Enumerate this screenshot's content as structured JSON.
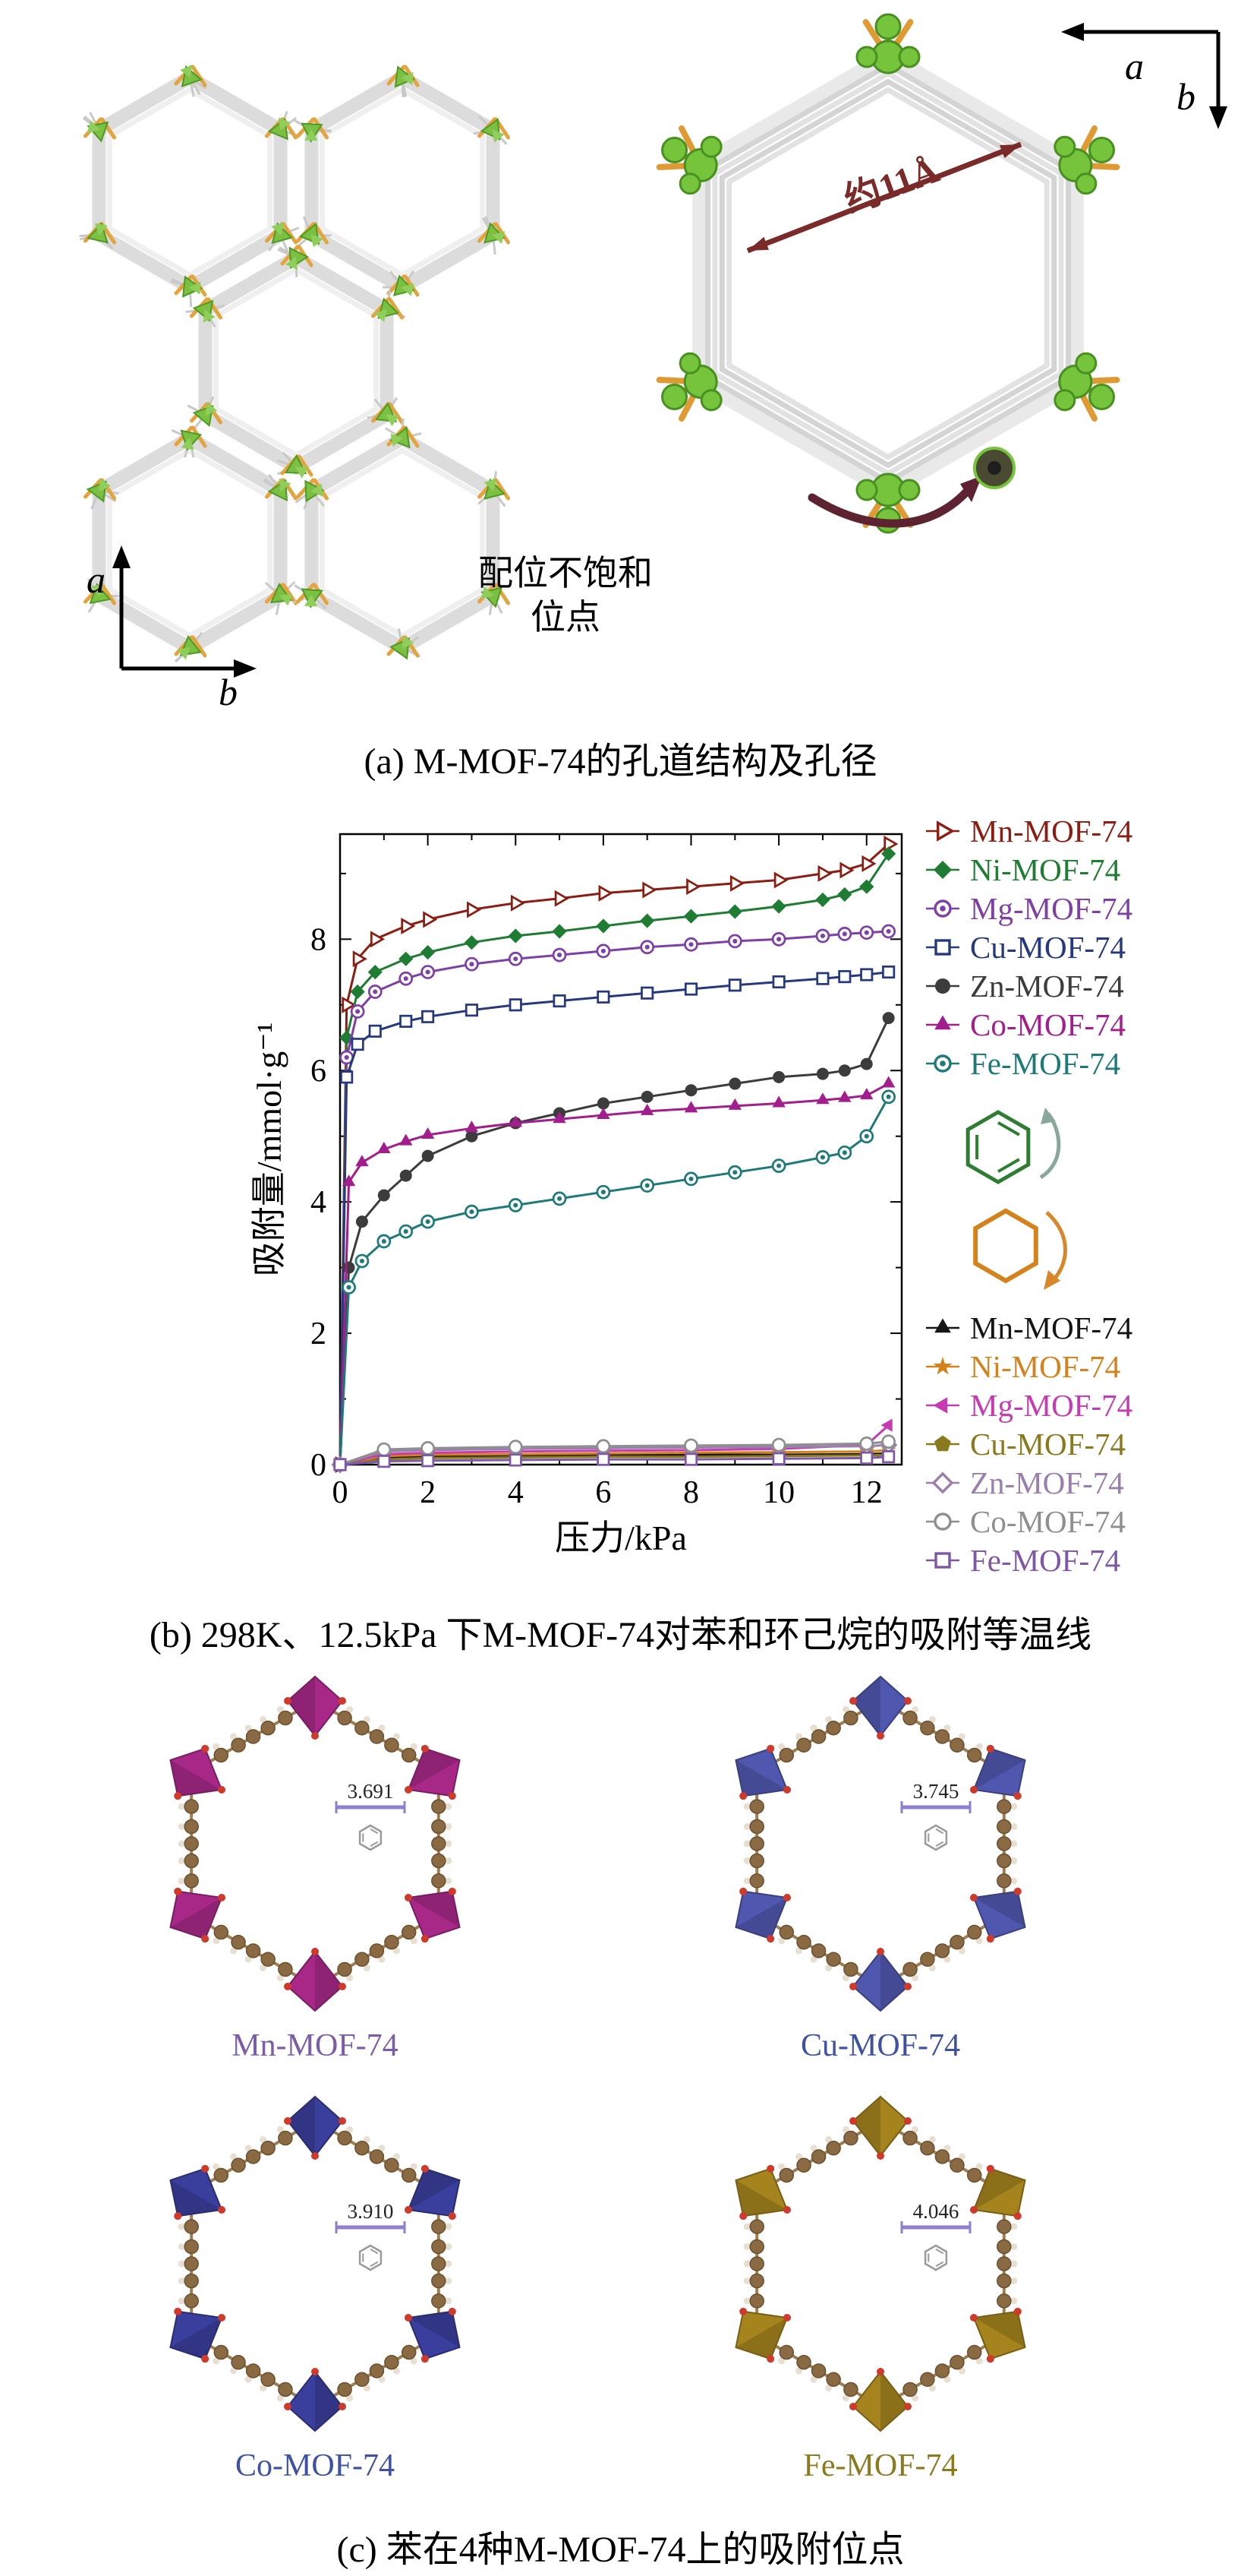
{
  "panel_a": {
    "caption": "(a) M-MOF-74的孔道结构及孔径",
    "axis_a": "a",
    "axis_b": "b",
    "pore_label": "约11Å",
    "site_label_line1": "配位不饱和",
    "site_label_line2": "位点"
  },
  "panel_b": {
    "caption": "(b) 298K、12.5kPa 下M-MOF-74对苯和环己烷的吸附等温线"
  },
  "chart_data": {
    "type": "line",
    "title": "",
    "xlabel": "压力/kPa",
    "ylabel": "吸附量/mmol·g⁻¹",
    "xlim": [
      0,
      12.8
    ],
    "ylim": [
      0,
      9.6
    ],
    "xticks": [
      0,
      2,
      4,
      6,
      8,
      10,
      12
    ],
    "yticks": [
      0,
      2,
      4,
      6,
      8
    ],
    "grid": false,
    "legend_position": "right",
    "groups": [
      {
        "name": "benzene",
        "icon": "benzene-icon",
        "icon_color": "#2e7d32",
        "series": [
          {
            "name": "Mn-MOF-74",
            "color": "#8b1d12",
            "marker": "triangle-right-open",
            "x": [
              0,
              0.15,
              0.4,
              0.8,
              1.5,
              2,
              3,
              4,
              5,
              6,
              7,
              8,
              9,
              10,
              11,
              11.5,
              12,
              12.5
            ],
            "y": [
              0,
              7.0,
              7.7,
              8.0,
              8.2,
              8.3,
              8.45,
              8.55,
              8.62,
              8.7,
              8.75,
              8.8,
              8.85,
              8.9,
              9.0,
              9.05,
              9.15,
              9.45
            ]
          },
          {
            "name": "Ni-MOF-74",
            "color": "#1f7d33",
            "marker": "diamond-filled",
            "x": [
              0,
              0.15,
              0.4,
              0.8,
              1.5,
              2,
              3,
              4,
              5,
              6,
              7,
              8,
              9,
              10,
              11,
              11.5,
              12,
              12.5
            ],
            "y": [
              0,
              6.5,
              7.2,
              7.5,
              7.7,
              7.8,
              7.95,
              8.05,
              8.12,
              8.2,
              8.28,
              8.35,
              8.42,
              8.5,
              8.6,
              8.68,
              8.8,
              9.3
            ]
          },
          {
            "name": "Mg-MOF-74",
            "color": "#7e3fa6",
            "marker": "circle-dot",
            "x": [
              0,
              0.15,
              0.4,
              0.8,
              1.5,
              2,
              3,
              4,
              5,
              6,
              7,
              8,
              9,
              10,
              11,
              11.5,
              12,
              12.5
            ],
            "y": [
              0,
              6.2,
              6.9,
              7.2,
              7.4,
              7.5,
              7.62,
              7.7,
              7.76,
              7.82,
              7.88,
              7.92,
              7.97,
              8.0,
              8.05,
              8.08,
              8.1,
              8.12
            ]
          },
          {
            "name": "Cu-MOF-74",
            "color": "#27397e",
            "marker": "square-open",
            "x": [
              0,
              0.15,
              0.4,
              0.8,
              1.5,
              2,
              3,
              4,
              5,
              6,
              7,
              8,
              9,
              10,
              11,
              11.5,
              12,
              12.5
            ],
            "y": [
              0,
              5.9,
              6.4,
              6.6,
              6.75,
              6.82,
              6.92,
              7.0,
              7.06,
              7.12,
              7.18,
              7.24,
              7.3,
              7.35,
              7.4,
              7.43,
              7.46,
              7.5
            ]
          },
          {
            "name": "Zn-MOF-74",
            "color": "#3c3c3c",
            "marker": "circle-filled",
            "x": [
              0,
              0.2,
              0.5,
              1,
              1.5,
              2,
              3,
              4,
              5,
              6,
              7,
              8,
              9,
              10,
              11,
              11.5,
              12,
              12.5
            ],
            "y": [
              0,
              3.0,
              3.7,
              4.1,
              4.4,
              4.7,
              5.0,
              5.2,
              5.35,
              5.5,
              5.6,
              5.7,
              5.8,
              5.9,
              5.95,
              6.0,
              6.1,
              6.8
            ]
          },
          {
            "name": "Co-MOF-74",
            "color": "#a11e8c",
            "marker": "triangle-up",
            "x": [
              0,
              0.2,
              0.5,
              1,
              1.5,
              2,
              3,
              4,
              5,
              6,
              7,
              8,
              9,
              10,
              11,
              11.5,
              12,
              12.5
            ],
            "y": [
              0,
              4.3,
              4.6,
              4.8,
              4.92,
              5.02,
              5.12,
              5.2,
              5.26,
              5.32,
              5.38,
              5.42,
              5.46,
              5.5,
              5.55,
              5.58,
              5.62,
              5.8
            ]
          },
          {
            "name": "Fe-MOF-74",
            "color": "#1e7a78",
            "marker": "circle-dot",
            "x": [
              0,
              0.2,
              0.5,
              1,
              1.5,
              2,
              3,
              4,
              5,
              6,
              7,
              8,
              9,
              10,
              11,
              11.5,
              12,
              12.5
            ],
            "y": [
              0,
              2.7,
              3.1,
              3.4,
              3.55,
              3.7,
              3.85,
              3.95,
              4.05,
              4.15,
              4.25,
              4.35,
              4.45,
              4.55,
              4.68,
              4.75,
              5.0,
              5.6
            ]
          }
        ]
      },
      {
        "name": "cyclohexane",
        "icon": "cyclohexane-icon",
        "icon_color": "#d4821c",
        "series": [
          {
            "name": "Mn-MOF-74",
            "color": "#151515",
            "marker": "triangle-up",
            "x": [
              0,
              1,
              2,
              4,
              6,
              8,
              10,
              12,
              12.5
            ],
            "y": [
              0,
              0.1,
              0.12,
              0.13,
              0.14,
              0.15,
              0.15,
              0.16,
              0.17
            ]
          },
          {
            "name": "Ni-MOF-74",
            "color": "#d4821c",
            "marker": "star",
            "x": [
              0,
              1,
              2,
              4,
              6,
              8,
              10,
              12,
              12.5
            ],
            "y": [
              0,
              0.13,
              0.15,
              0.16,
              0.17,
              0.18,
              0.19,
              0.2,
              0.22
            ]
          },
          {
            "name": "Mg-MOF-74",
            "color": "#c63ab2",
            "marker": "triangle-left",
            "x": [
              0,
              1,
              2,
              4,
              6,
              8,
              10,
              12,
              12.5
            ],
            "y": [
              0,
              0.16,
              0.18,
              0.2,
              0.21,
              0.22,
              0.24,
              0.3,
              0.6
            ]
          },
          {
            "name": "Cu-MOF-74",
            "color": "#8a7a1e",
            "marker": "pentagon",
            "x": [
              0,
              1,
              2,
              4,
              6,
              8,
              10,
              12,
              12.5
            ],
            "y": [
              0,
              0.08,
              0.1,
              0.11,
              0.12,
              0.12,
              0.13,
              0.14,
              0.15
            ]
          },
          {
            "name": "Zn-MOF-74",
            "color": "#9a7fae",
            "marker": "diamond-open",
            "x": [
              0,
              1,
              2,
              4,
              6,
              8,
              10,
              12,
              12.5
            ],
            "y": [
              0,
              0.2,
              0.22,
              0.24,
              0.25,
              0.26,
              0.27,
              0.28,
              0.3
            ]
          },
          {
            "name": "Co-MOF-74",
            "color": "#8f8f8f",
            "marker": "circle-open",
            "x": [
              0,
              1,
              2,
              4,
              6,
              8,
              10,
              12,
              12.5
            ],
            "y": [
              0,
              0.23,
              0.25,
              0.27,
              0.28,
              0.29,
              0.3,
              0.32,
              0.35
            ]
          },
          {
            "name": "Fe-MOF-74",
            "color": "#7e57a8",
            "marker": "square-open",
            "x": [
              0,
              1,
              2,
              4,
              6,
              8,
              10,
              12,
              12.5
            ],
            "y": [
              0,
              0.05,
              0.06,
              0.07,
              0.08,
              0.08,
              0.09,
              0.1,
              0.12
            ]
          }
        ]
      }
    ]
  },
  "panel_c": {
    "caption": "(c) 苯在4种M-MOF-74上的吸附位点",
    "structures": [
      {
        "label": "Mn-MOF-74",
        "distance": "3.691",
        "color": "#a82888",
        "label_color": "#7b5ca8"
      },
      {
        "label": "Cu-MOF-74",
        "distance": "3.745",
        "color": "#5057ae",
        "label_color": "#3f51a3"
      },
      {
        "label": "Co-MOF-74",
        "distance": "3.910",
        "color": "#3a3e9c",
        "label_color": "#3f51a3"
      },
      {
        "label": "Fe-MOF-74",
        "distance": "4.046",
        "color": "#a5841e",
        "label_color": "#8a7a20"
      }
    ]
  }
}
